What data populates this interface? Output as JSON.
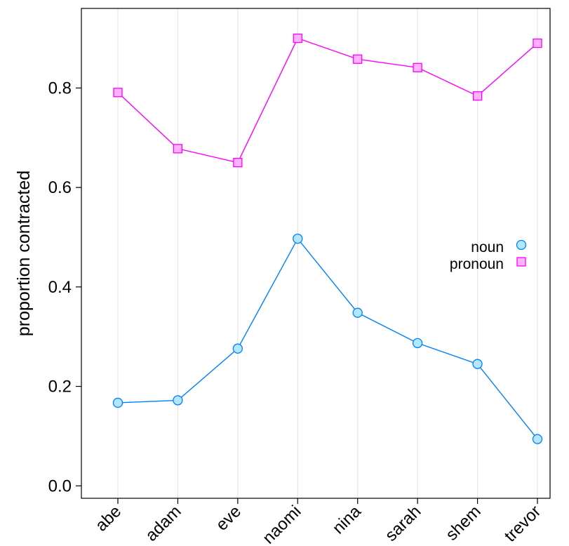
{
  "chart_data": {
    "type": "line",
    "categories": [
      "abe",
      "adam",
      "eve",
      "naomi",
      "nina",
      "sarah",
      "shem",
      "trevor"
    ],
    "series": [
      {
        "name": "noun",
        "marker": "circle",
        "color": "#0080ff",
        "fill": "#b3e6ff",
        "values": [
          0.167,
          0.172,
          0.276,
          0.497,
          0.348,
          0.287,
          0.245,
          0.094
        ]
      },
      {
        "name": "pronoun",
        "marker": "square",
        "color": "#ff00ff",
        "fill": "#ffb3ff",
        "values": [
          0.791,
          0.678,
          0.65,
          0.9,
          0.858,
          0.841,
          0.784,
          0.89
        ]
      }
    ],
    "ylabel": "proportion contracted",
    "xlabel": "",
    "ylim": [
      -0.025,
      0.96
    ],
    "yticks": [
      0.0,
      0.2,
      0.4,
      0.6,
      0.8
    ],
    "ytick_labels": [
      "0.0",
      "0.2",
      "0.4",
      "0.6",
      "0.8"
    ],
    "grid": "vertical lines at categories",
    "legend_position": "right"
  }
}
